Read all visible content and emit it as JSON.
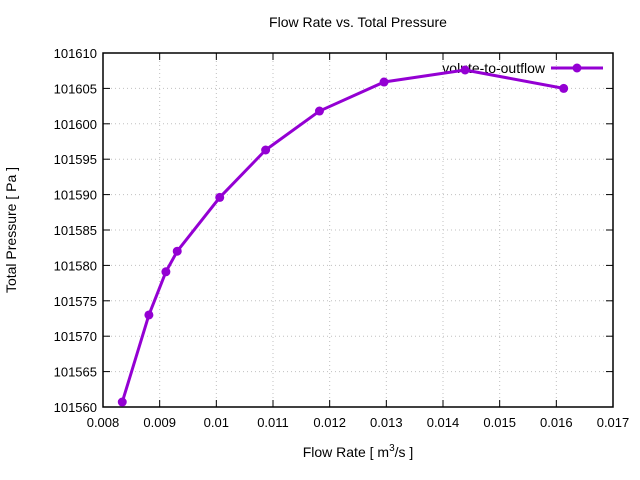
{
  "window": {
    "background": "#ffffff"
  },
  "chart_data": {
    "type": "line",
    "title": "Flow Rate vs. Total Pressure",
    "xlabel": {
      "plain": "Flow Rate [ m^3/s ]",
      "parts": [
        "Flow Rate [ m",
        "3",
        "/s ]"
      ]
    },
    "ylabel": "Total Pressure [ Pa ]",
    "xlim": [
      0.008,
      0.017
    ],
    "ylim": [
      101560,
      101610
    ],
    "xticks": {
      "values": [
        0.008,
        0.009,
        0.01,
        0.011,
        0.012,
        0.013,
        0.014,
        0.015,
        0.016,
        0.017
      ],
      "labels": [
        "0.008",
        "0.009",
        "0.01",
        "0.011",
        "0.012",
        "0.013",
        "0.014",
        "0.015",
        "0.016",
        "0.017"
      ]
    },
    "yticks": {
      "values": [
        101560,
        101565,
        101570,
        101575,
        101580,
        101585,
        101590,
        101595,
        101600,
        101605,
        101610
      ],
      "labels": [
        "101560",
        "101565",
        "101570",
        "101575",
        "101580",
        "101585",
        "101590",
        "101595",
        "101600",
        "101605",
        "101610"
      ]
    },
    "grid": true,
    "legend": {
      "position": "top-right-inside",
      "entries": [
        "volute-to-outflow"
      ]
    },
    "series": [
      {
        "name": "volute-to-outflow",
        "color": "#9400d3",
        "marker": "circle",
        "points": [
          [
            0.00834,
            101560.7
          ],
          [
            0.00881,
            101573.0
          ],
          [
            0.00911,
            101579.1
          ],
          [
            0.00931,
            101582.0
          ],
          [
            0.01006,
            101589.6
          ],
          [
            0.01087,
            101596.3
          ],
          [
            0.01182,
            101601.8
          ],
          [
            0.01296,
            101605.9
          ],
          [
            0.01439,
            101607.6
          ],
          [
            0.01613,
            101605.0
          ]
        ]
      }
    ],
    "colors": {
      "line": "#9400d3",
      "grid": "#c0c0c0",
      "axis": "#000000",
      "text": "#000000"
    }
  }
}
